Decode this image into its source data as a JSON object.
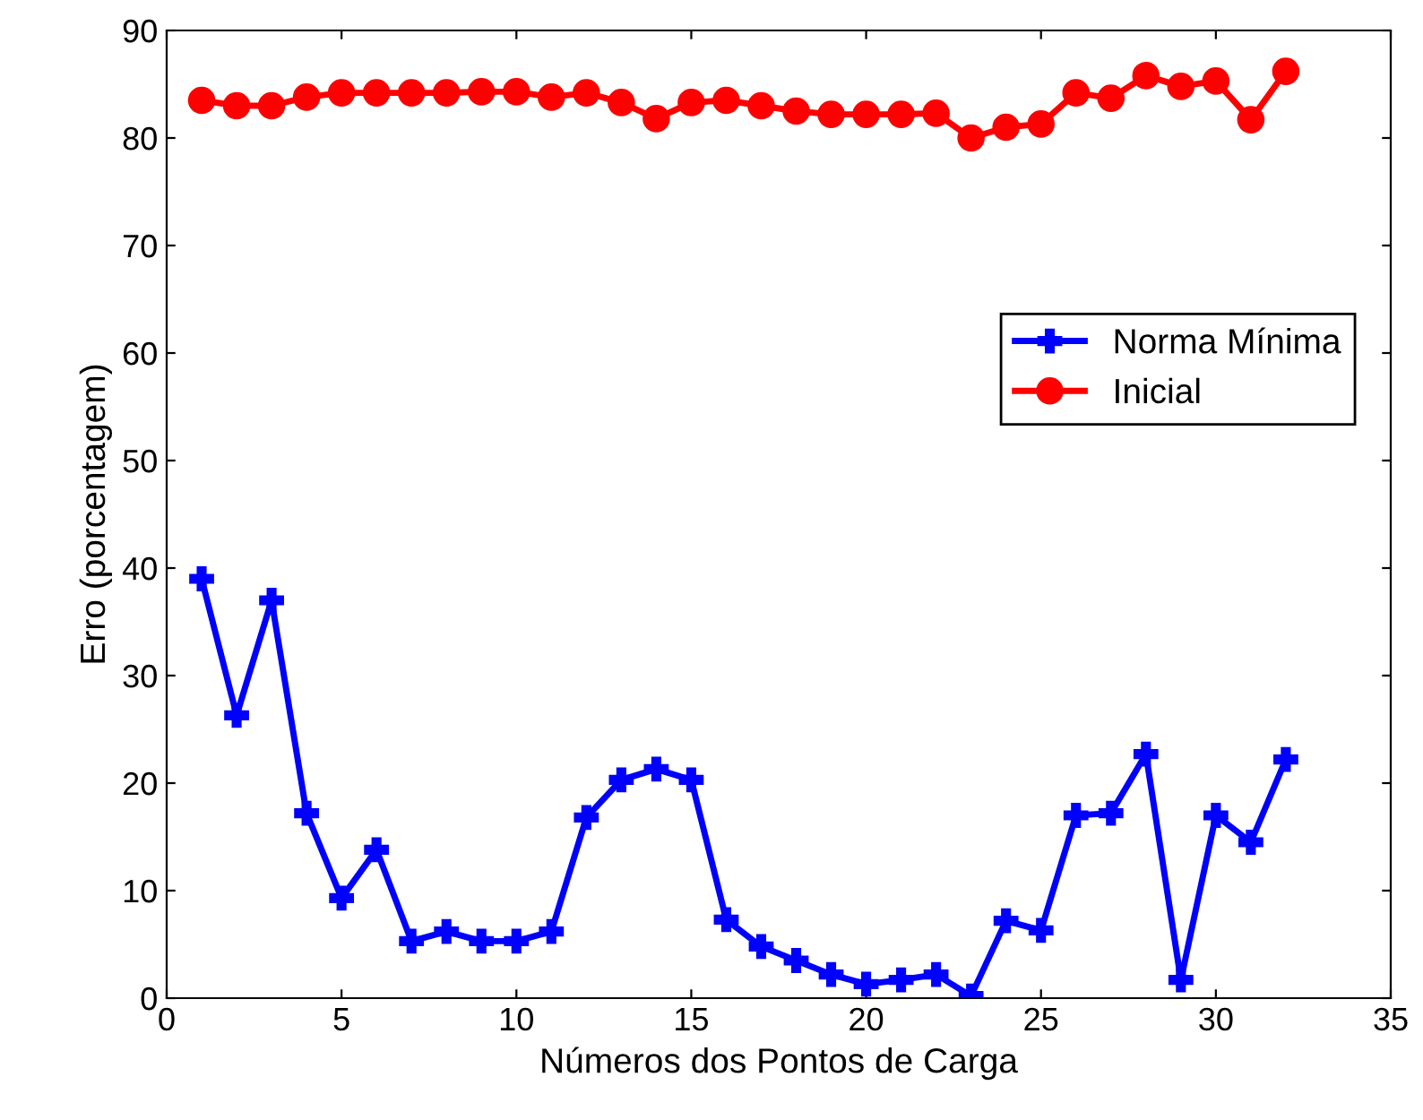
{
  "chart_data": {
    "type": "line",
    "xlabel": "Números dos Pontos de Carga",
    "ylabel": "Erro (porcentagem)",
    "x": [
      1,
      2,
      3,
      4,
      5,
      6,
      7,
      8,
      9,
      10,
      11,
      12,
      13,
      14,
      15,
      16,
      17,
      18,
      19,
      20,
      21,
      22,
      23,
      24,
      25,
      26,
      27,
      28,
      29,
      30,
      31,
      32
    ],
    "series": [
      {
        "name": "Norma Mínima",
        "color": "#0000ff",
        "marker": "cross",
        "values": [
          39.0,
          26.3,
          37.0,
          17.2,
          9.3,
          13.8,
          5.3,
          6.2,
          5.3,
          5.3,
          6.2,
          16.8,
          20.3,
          21.3,
          20.3,
          7.3,
          4.8,
          3.5,
          2.2,
          1.3,
          1.7,
          2.2,
          0.2,
          7.2,
          6.3,
          17.0,
          17.2,
          22.7,
          1.7,
          17.0,
          14.5,
          22.2
        ]
      },
      {
        "name": "Inicial",
        "color": "#ff0000",
        "marker": "circle",
        "values": [
          83.5,
          83.0,
          83.0,
          83.8,
          84.2,
          84.2,
          84.2,
          84.2,
          84.3,
          84.3,
          83.8,
          84.2,
          83.3,
          81.8,
          83.3,
          83.5,
          83.0,
          82.5,
          82.2,
          82.2,
          82.2,
          82.3,
          80.0,
          81.0,
          81.3,
          84.2,
          83.7,
          85.8,
          84.8,
          85.3,
          81.7,
          86.2
        ]
      }
    ],
    "xlim": [
      0,
      35
    ],
    "xticks": [
      0,
      5,
      10,
      15,
      20,
      25,
      30,
      35
    ],
    "ylim": [
      0,
      90
    ],
    "yticks": [
      0,
      10,
      20,
      30,
      40,
      50,
      60,
      70,
      80,
      90
    ],
    "grid": false,
    "legend": "center right",
    "line_style": "solid"
  }
}
